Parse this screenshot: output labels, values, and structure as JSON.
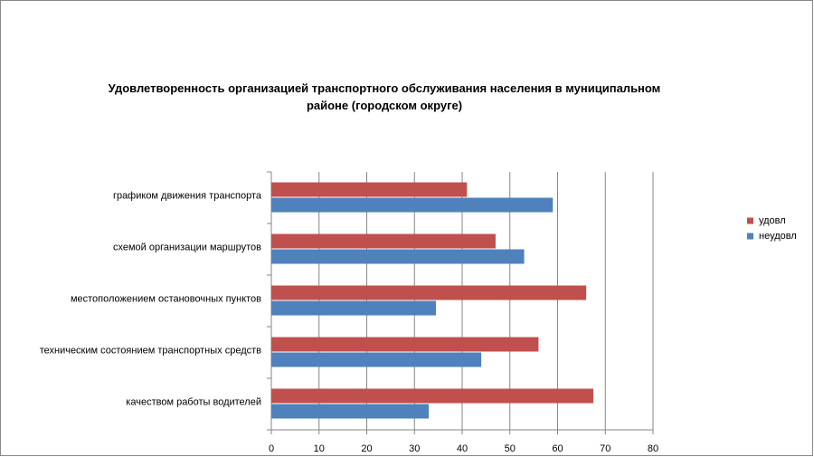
{
  "chart_data": {
    "type": "barh",
    "title": "Удовлетворенность организацией транспортного обслуживания населения в муниципальном районе (городском округе)",
    "categories": [
      "графиком движения транспорта",
      "схемой организации маршрутов",
      "местоположением остановочных пунктов",
      "техническим состоянием транспортных средств",
      "качеством работы водителей"
    ],
    "series": [
      {
        "name": "удовл",
        "color": "#c0504d",
        "values": [
          41,
          47,
          66,
          56,
          67.5
        ]
      },
      {
        "name": "неудовл",
        "color": "#4f81bd",
        "values": [
          59,
          53,
          34.5,
          44,
          33
        ]
      }
    ],
    "xlim": [
      0,
      80
    ],
    "xticks": [
      0,
      10,
      20,
      30,
      40,
      50,
      60,
      70,
      80
    ],
    "grid": true,
    "legend": "right"
  }
}
